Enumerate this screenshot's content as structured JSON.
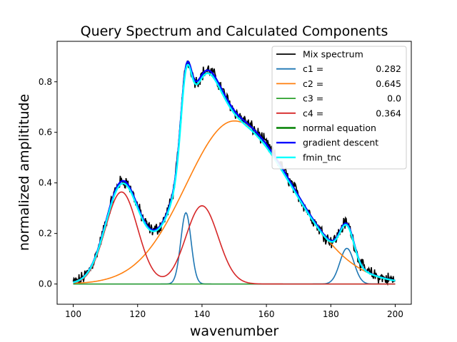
{
  "chart_data": {
    "type": "line",
    "title": "Query Spectrum and Calculated Components",
    "xlabel": "wavenumber",
    "ylabel": "normalized amplititude",
    "xlim": [
      95,
      205
    ],
    "ylim": [
      -0.08,
      0.96
    ],
    "x_ticks": [
      "100",
      "120",
      "140",
      "160",
      "180",
      "200"
    ],
    "y_ticks": [
      "0.0",
      "0.2",
      "0.4",
      "0.6",
      "0.8"
    ],
    "grid": false,
    "legend_position": "top-right",
    "components": [
      {
        "name": "c1 =",
        "value": "0.282",
        "color": "#1f77b4",
        "amplitude": 0.282,
        "peaks": [
          {
            "center": 135,
            "sigma": 1.6,
            "height": 1.0
          },
          {
            "center": 185,
            "sigma": 2.2,
            "height": 0.5
          }
        ]
      },
      {
        "name": "c2 =",
        "value": "0.645",
        "color": "#ff7f0e",
        "amplitude": 0.645,
        "peaks": [
          {
            "center": 150,
            "sigma_left": 15,
            "sigma_right": 18,
            "height": 1.0
          }
        ]
      },
      {
        "name": "c3 =",
        "value": "0.0",
        "color": "#2ca02c",
        "amplitude": 0.0,
        "peaks": []
      },
      {
        "name": "c4 =",
        "value": "0.364",
        "color": "#d62728",
        "amplitude": 0.364,
        "peaks": [
          {
            "center": 115,
            "sigma": 5.0,
            "height": 1.0
          },
          {
            "center": 140,
            "sigma": 5.0,
            "height": 0.85
          }
        ]
      }
    ],
    "series": [
      {
        "name": "Mix spectrum",
        "color": "#000000",
        "style": "noisy"
      },
      {
        "name": "normal equation",
        "color": "#008000"
      },
      {
        "name": "gradient descent",
        "color": "#0000ff"
      },
      {
        "name": "fmin_tnc",
        "color": "#00ffff"
      }
    ]
  }
}
